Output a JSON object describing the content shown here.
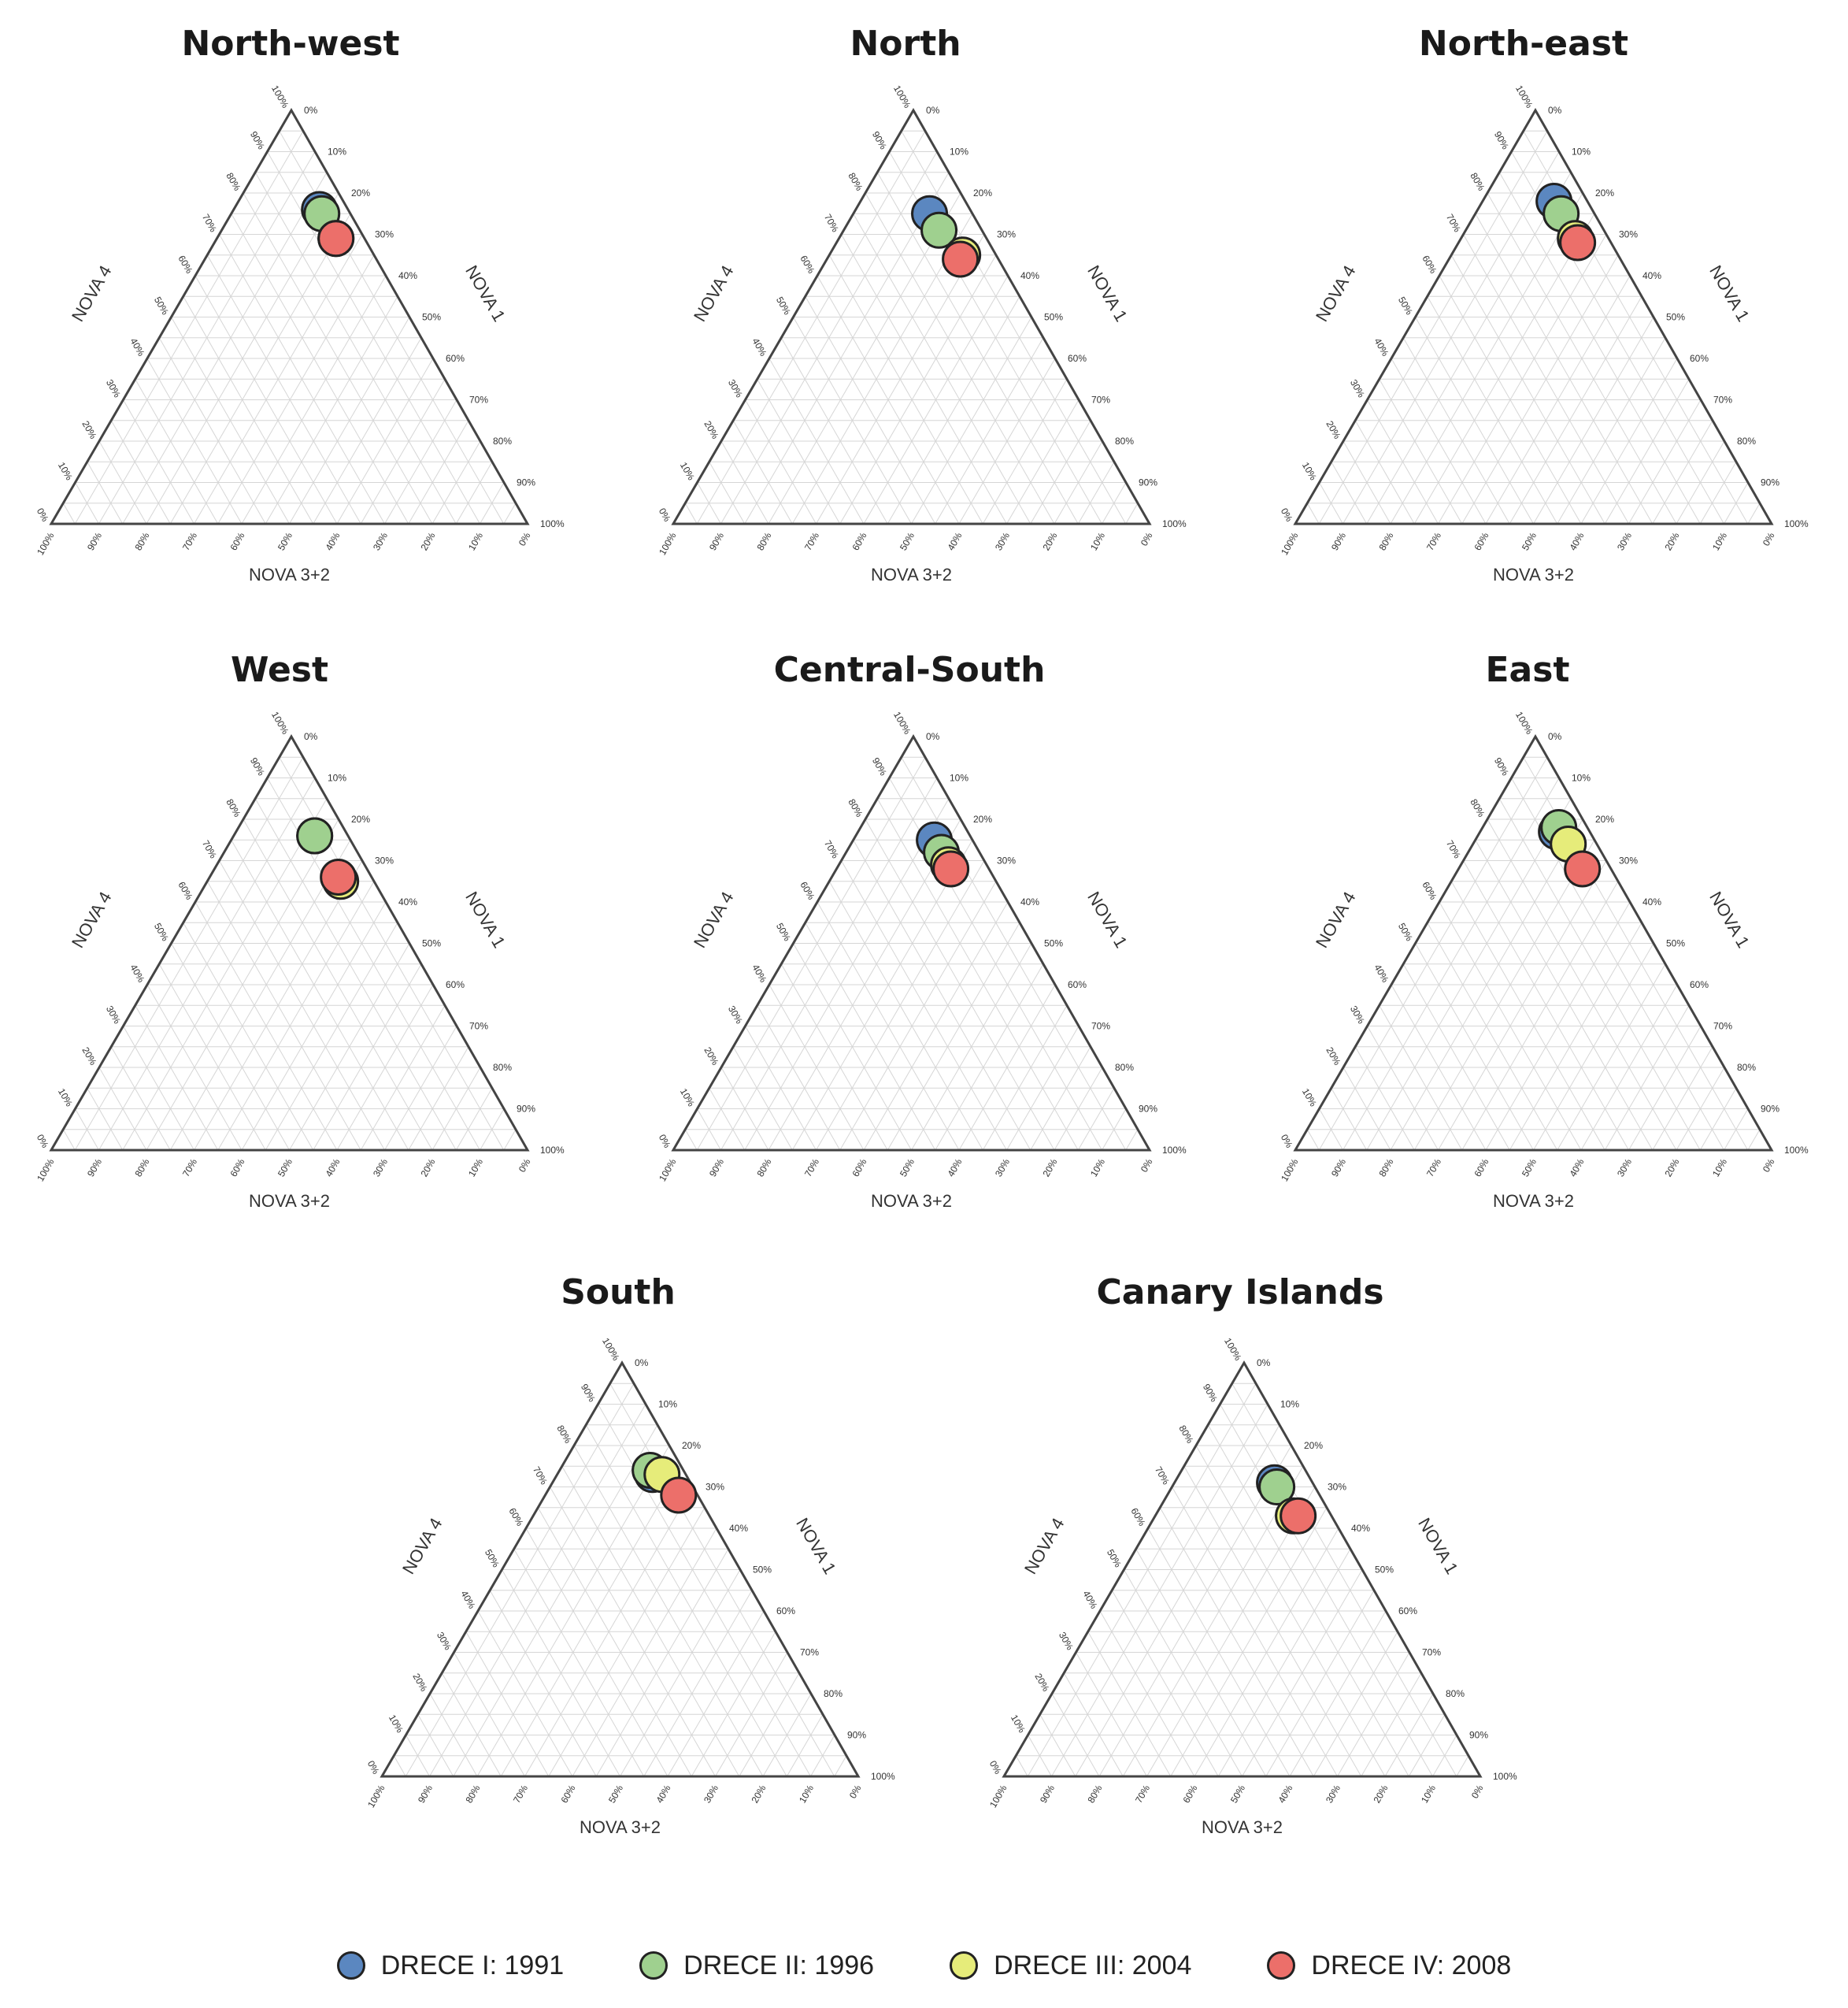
{
  "chart_data": [
    {
      "type": "ternary-scatter",
      "title": "North-west",
      "axes": {
        "top": "NOVA 1",
        "left": "NOVA 4",
        "bottom": "NOVA 3+2"
      },
      "tick_labels": [
        "0%",
        "10%",
        "20%",
        "30%",
        "40%",
        "50%",
        "60%",
        "70%",
        "80%",
        "90%",
        "100%"
      ],
      "points": [
        {
          "series": "DRECE I: 1991",
          "nova1": 76,
          "nova4": 18,
          "nova32": 6
        },
        {
          "series": "DRECE II: 1996",
          "nova1": 75,
          "nova4": 19,
          "nova32": 6
        },
        {
          "series": "DRECE III: 2004",
          "nova1": 69,
          "nova4": 25,
          "nova32": 6
        },
        {
          "series": "DRECE IV: 2008",
          "nova1": 69,
          "nova4": 25,
          "nova32": 6
        }
      ]
    },
    {
      "type": "ternary-scatter",
      "title": "North",
      "axes": {
        "top": "NOVA 1",
        "left": "NOVA 4",
        "bottom": "NOVA 3+2"
      },
      "tick_labels": [
        "0%",
        "10%",
        "20%",
        "30%",
        "40%",
        "50%",
        "60%",
        "70%",
        "80%",
        "90%",
        "100%"
      ],
      "points": [
        {
          "series": "DRECE I: 1991",
          "nova1": 75,
          "nova4": 16,
          "nova32": 9
        },
        {
          "series": "DRECE II: 1996",
          "nova1": 71,
          "nova4": 20,
          "nova32": 9
        },
        {
          "series": "DRECE III: 2004",
          "nova1": 65,
          "nova4": 28,
          "nova32": 7
        },
        {
          "series": "DRECE IV: 2008",
          "nova1": 64,
          "nova4": 28,
          "nova32": 8
        }
      ]
    },
    {
      "type": "ternary-scatter",
      "title": "North-east",
      "axes": {
        "top": "NOVA 1",
        "left": "NOVA 4",
        "bottom": "NOVA 3+2"
      },
      "tick_labels": [
        "0%",
        "10%",
        "20%",
        "30%",
        "40%",
        "50%",
        "60%",
        "70%",
        "80%",
        "90%",
        "100%"
      ],
      "points": [
        {
          "series": "DRECE I: 1991",
          "nova1": 78,
          "nova4": 15,
          "nova32": 7
        },
        {
          "series": "DRECE II: 1996",
          "nova1": 75,
          "nova4": 18,
          "nova32": 7
        },
        {
          "series": "DRECE III: 2004",
          "nova1": 69,
          "nova4": 24,
          "nova32": 7
        },
        {
          "series": "DRECE IV: 2008",
          "nova1": 68,
          "nova4": 25,
          "nova32": 7
        }
      ]
    },
    {
      "type": "ternary-scatter",
      "title": "West",
      "axes": {
        "top": "NOVA 1",
        "left": "NOVA 4",
        "bottom": "NOVA 3+2"
      },
      "tick_labels": [
        "0%",
        "10%",
        "20%",
        "30%",
        "40%",
        "50%",
        "60%",
        "70%",
        "80%",
        "90%",
        "100%"
      ],
      "points": [
        {
          "series": "DRECE I: 1991",
          "nova1": 76,
          "nova4": 17,
          "nova32": 7
        },
        {
          "series": "DRECE II: 1996",
          "nova1": 76,
          "nova4": 17,
          "nova32": 7
        },
        {
          "series": "DRECE III: 2004",
          "nova1": 65,
          "nova4": 28,
          "nova32": 7
        },
        {
          "series": "DRECE IV: 2008",
          "nova1": 66,
          "nova4": 27,
          "nova32": 7
        }
      ]
    },
    {
      "type": "ternary-scatter",
      "title": "Central-South",
      "axes": {
        "top": "NOVA 1",
        "left": "NOVA 4",
        "bottom": "NOVA 3+2"
      },
      "tick_labels": [
        "0%",
        "10%",
        "20%",
        "30%",
        "40%",
        "50%",
        "60%",
        "70%",
        "80%",
        "90%",
        "100%"
      ],
      "points": [
        {
          "series": "DRECE I: 1991",
          "nova1": 75,
          "nova4": 17,
          "nova32": 8
        },
        {
          "series": "DRECE II: 1996",
          "nova1": 72,
          "nova4": 20,
          "nova32": 8
        },
        {
          "series": "DRECE III: 2004",
          "nova1": 69,
          "nova4": 23,
          "nova32": 8
        },
        {
          "series": "DRECE IV: 2008",
          "nova1": 68,
          "nova4": 24,
          "nova32": 8
        }
      ]
    },
    {
      "type": "ternary-scatter",
      "title": "East",
      "axes": {
        "top": "NOVA 1",
        "left": "NOVA 4",
        "bottom": "NOVA 3+2"
      },
      "tick_labels": [
        "0%",
        "10%",
        "20%",
        "30%",
        "40%",
        "50%",
        "60%",
        "70%",
        "80%",
        "90%",
        "100%"
      ],
      "points": [
        {
          "series": "DRECE I: 1991",
          "nova1": 77,
          "nova4": 16,
          "nova32": 7
        },
        {
          "series": "DRECE II: 1996",
          "nova1": 78,
          "nova4": 16,
          "nova32": 6
        },
        {
          "series": "DRECE III: 2004",
          "nova1": 74,
          "nova4": 20,
          "nova32": 6
        },
        {
          "series": "DRECE IV: 2008",
          "nova1": 68,
          "nova4": 26,
          "nova32": 6
        }
      ]
    },
    {
      "type": "ternary-scatter",
      "title": "South",
      "axes": {
        "top": "NOVA 1",
        "left": "NOVA 4",
        "bottom": "NOVA 3+2"
      },
      "tick_labels": [
        "0%",
        "10%",
        "20%",
        "30%",
        "40%",
        "50%",
        "60%",
        "70%",
        "80%",
        "90%",
        "100%"
      ],
      "points": [
        {
          "series": "DRECE I: 1991",
          "nova1": 73,
          "nova4": 20,
          "nova32": 7
        },
        {
          "series": "DRECE II: 1996",
          "nova1": 74,
          "nova4": 19,
          "nova32": 7
        },
        {
          "series": "DRECE III: 2004",
          "nova1": 73,
          "nova4": 22,
          "nova32": 5
        },
        {
          "series": "DRECE IV: 2008",
          "nova1": 68,
          "nova4": 28,
          "nova32": 4
        }
      ]
    },
    {
      "type": "ternary-scatter",
      "title": "Canary Islands",
      "axes": {
        "top": "NOVA 1",
        "left": "NOVA 4",
        "bottom": "NOVA 3+2"
      },
      "tick_labels": [
        "0%",
        "10%",
        "20%",
        "30%",
        "40%",
        "50%",
        "60%",
        "70%",
        "80%",
        "90%",
        "100%"
      ],
      "points": [
        {
          "series": "DRECE I: 1991",
          "nova1": 71,
          "nova4": 21,
          "nova32": 8
        },
        {
          "series": "DRECE II: 1996",
          "nova1": 70,
          "nova4": 22,
          "nova32": 8
        },
        {
          "series": "DRECE III: 2004",
          "nova1": 63,
          "nova4": 29,
          "nova32": 8
        },
        {
          "series": "DRECE IV: 2008",
          "nova1": 63,
          "nova4": 30,
          "nova32": 7
        }
      ]
    }
  ],
  "legend": {
    "placement": "bottom",
    "items": [
      {
        "label": "DRECE I: 1991",
        "color": "#5b87c0"
      },
      {
        "label": "DRECE II: 1996",
        "color": "#9fd08f"
      },
      {
        "label": "DRECE III: 2004",
        "color": "#e6ec7a"
      },
      {
        "label": "DRECE IV: 2008",
        "color": "#ec6f6a"
      }
    ]
  }
}
